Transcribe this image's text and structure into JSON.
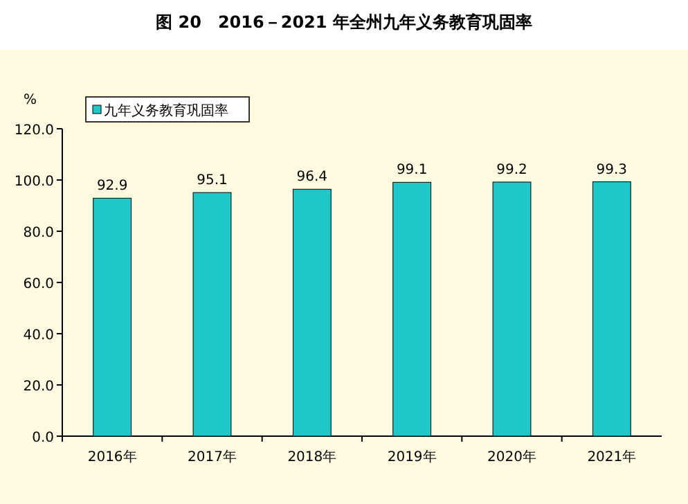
{
  "chart_data": {
    "type": "bar",
    "title": "图 20　2016－2021 年全州九年义务教育巩固率",
    "ylabel": "%",
    "categories": [
      "2016年",
      "2017年",
      "2018年",
      "2019年",
      "2020年",
      "2021年"
    ],
    "series": [
      {
        "name": "九年义务教育巩固率",
        "color": "#1cc8c8",
        "values": [
          92.9,
          95.1,
          96.4,
          99.1,
          99.2,
          99.3
        ]
      }
    ],
    "ylim": [
      0,
      120
    ],
    "yticks": [
      {
        "value": 0,
        "label": "0.0"
      },
      {
        "value": 20,
        "label": "20.0"
      },
      {
        "value": 40,
        "label": "40.0"
      },
      {
        "value": 60,
        "label": "60.0"
      },
      {
        "value": 80,
        "label": "80.0"
      },
      {
        "value": 100,
        "label": "100.0"
      },
      {
        "value": 120,
        "label": "120.0"
      }
    ],
    "data_labels": true,
    "legend": "top left",
    "grid": false
  }
}
